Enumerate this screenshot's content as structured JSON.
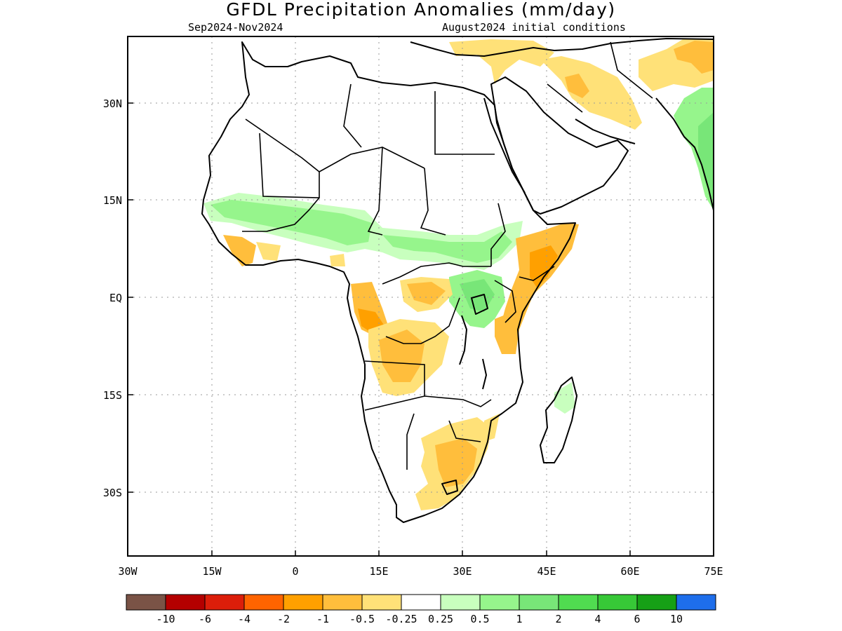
{
  "title": "GFDL Precipitation Anomalies (mm/day)",
  "period": "Sep2024-Nov2024",
  "init": "August2024 initial conditions",
  "x_ticks": [
    "30W",
    "15W",
    "0",
    "15E",
    "30E",
    "45E",
    "60E",
    "75E"
  ],
  "y_ticks": [
    "30N",
    "15N",
    "EQ",
    "15S",
    "30S"
  ],
  "colorbar": {
    "colors": [
      "#7a5346",
      "#b40000",
      "#dc1e0a",
      "#ff6400",
      "#ffa000",
      "#ffbe3c",
      "#ffe178",
      "#ffffff",
      "#c8ffbe",
      "#96f58c",
      "#78e678",
      "#50dc50",
      "#37c837",
      "#16a016",
      "#1e6eeb"
    ],
    "labels": [
      "-10",
      "-6",
      "-4",
      "-2",
      "-1",
      "-0.5",
      "-0.25",
      "0.25",
      "0.5",
      "1",
      "2",
      "4",
      "6",
      "10"
    ]
  },
  "map": {
    "lon_range": [
      -30,
      75
    ],
    "lat_range": [
      -40,
      40
    ],
    "grid": true,
    "anomaly_regions": [
      {
        "name": "arabia-dry",
        "level": "-0.25"
      },
      {
        "name": "iran-dry",
        "level": "-0.5"
      },
      {
        "name": "india-wet",
        "level": "1"
      },
      {
        "name": "sahel-wet",
        "level": "0.5"
      },
      {
        "name": "guinea-coast-dry",
        "level": "-0.5"
      },
      {
        "name": "east-horn-dry",
        "level": "-1"
      },
      {
        "name": "congo-west-dry",
        "level": "-1"
      },
      {
        "name": "angola-dry",
        "level": "-0.5"
      },
      {
        "name": "southern-africa-dry",
        "level": "-0.5"
      },
      {
        "name": "east-africa-wet",
        "level": "1"
      }
    ]
  }
}
